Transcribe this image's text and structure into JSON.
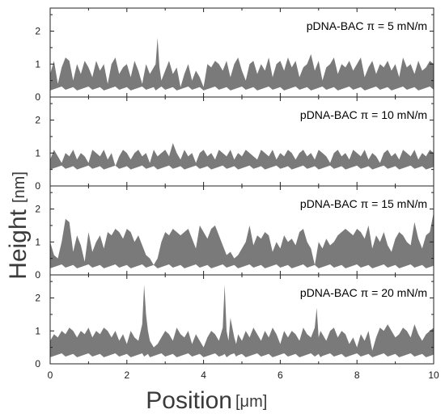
{
  "chart_data": {
    "type": "area",
    "xlabel": "Position",
    "xunit": "[μm]",
    "ylabel": "Height",
    "yunit": "[nm]",
    "xlim": [
      0,
      10
    ],
    "xticks": [
      "0",
      "2",
      "4",
      "6",
      "8",
      "10"
    ],
    "fill_color": "#7a7a7a",
    "panels": [
      {
        "label": "pDNA-BAC π = 5 mN/m",
        "ylim": [
          0,
          2.7
        ],
        "yticks": [
          "0",
          "1",
          "2"
        ],
        "x": [
          0.0,
          0.1,
          0.2,
          0.3,
          0.4,
          0.5,
          0.6,
          0.7,
          0.8,
          0.9,
          1.0,
          1.1,
          1.2,
          1.3,
          1.4,
          1.5,
          1.6,
          1.7,
          1.8,
          1.9,
          2.0,
          2.1,
          2.2,
          2.3,
          2.4,
          2.5,
          2.6,
          2.7,
          2.75,
          2.8,
          2.85,
          2.9,
          3.0,
          3.1,
          3.2,
          3.3,
          3.4,
          3.5,
          3.6,
          3.7,
          3.8,
          3.9,
          4.0,
          4.1,
          4.2,
          4.3,
          4.4,
          4.5,
          4.6,
          4.7,
          4.8,
          4.9,
          5.0,
          5.1,
          5.2,
          5.3,
          5.4,
          5.5,
          5.6,
          5.7,
          5.8,
          5.9,
          6.0,
          6.1,
          6.2,
          6.3,
          6.4,
          6.5,
          6.6,
          6.7,
          6.8,
          6.9,
          7.0,
          7.1,
          7.2,
          7.3,
          7.4,
          7.5,
          7.6,
          7.7,
          7.8,
          7.9,
          8.0,
          8.1,
          8.2,
          8.3,
          8.4,
          8.5,
          8.6,
          8.7,
          8.8,
          8.9,
          9.0,
          9.1,
          9.2,
          9.3,
          9.4,
          9.5,
          9.6,
          9.7,
          9.8,
          9.9,
          10.0
        ],
        "y": [
          0.7,
          1.1,
          0.4,
          0.9,
          1.2,
          1.1,
          0.5,
          1.0,
          0.7,
          1.1,
          0.9,
          0.6,
          1.1,
          0.8,
          1.0,
          0.4,
          1.0,
          1.2,
          0.7,
          0.9,
          1.0,
          0.6,
          1.1,
          0.8,
          0.4,
          1.0,
          0.7,
          0.9,
          1.0,
          1.8,
          0.9,
          0.5,
          0.8,
          1.1,
          0.7,
          0.9,
          0.3,
          0.7,
          1.0,
          0.5,
          0.8,
          0.6,
          0.3,
          1.0,
          0.9,
          1.1,
          1.0,
          0.8,
          1.1,
          0.6,
          1.0,
          1.2,
          0.8,
          0.5,
          1.0,
          1.1,
          0.7,
          1.0,
          0.8,
          1.2,
          0.6,
          1.0,
          1.1,
          0.8,
          1.2,
          0.9,
          1.1,
          0.6,
          0.9,
          1.0,
          1.3,
          0.8,
          1.1,
          0.5,
          0.9,
          1.0,
          1.2,
          0.7,
          1.0,
          0.9,
          1.1,
          0.8,
          1.0,
          1.2,
          0.6,
          0.9,
          1.1,
          0.7,
          1.0,
          0.9,
          1.1,
          0.8,
          1.0,
          0.6,
          1.2,
          0.9,
          1.0,
          0.7,
          1.1,
          0.8,
          0.9,
          1.1,
          1.0
        ],
        "bottom": 0.2
      },
      {
        "label": "pDNA-BAC π = 10 mN/m",
        "ylim": [
          0,
          2.7
        ],
        "yticks": [
          "0",
          "1",
          "2"
        ],
        "x": [
          0.0,
          0.1,
          0.2,
          0.3,
          0.4,
          0.5,
          0.6,
          0.7,
          0.8,
          0.9,
          1.0,
          1.1,
          1.2,
          1.3,
          1.4,
          1.5,
          1.6,
          1.7,
          1.8,
          1.9,
          2.0,
          2.1,
          2.2,
          2.3,
          2.4,
          2.5,
          2.6,
          2.7,
          2.8,
          2.9,
          3.0,
          3.1,
          3.2,
          3.3,
          3.4,
          3.5,
          3.6,
          3.7,
          3.8,
          3.9,
          4.0,
          4.1,
          4.2,
          4.3,
          4.4,
          4.5,
          4.6,
          4.7,
          4.8,
          4.9,
          5.0,
          5.1,
          5.2,
          5.3,
          5.4,
          5.5,
          5.6,
          5.7,
          5.8,
          5.9,
          6.0,
          6.1,
          6.2,
          6.3,
          6.4,
          6.5,
          6.6,
          6.7,
          6.8,
          6.9,
          7.0,
          7.1,
          7.2,
          7.3,
          7.4,
          7.5,
          7.6,
          7.7,
          7.8,
          7.9,
          8.0,
          8.1,
          8.2,
          8.3,
          8.4,
          8.5,
          8.6,
          8.7,
          8.8,
          8.9,
          9.0,
          9.1,
          9.2,
          9.3,
          9.4,
          9.5,
          9.6,
          9.7,
          9.8,
          9.9,
          10.0
        ],
        "y": [
          0.8,
          1.1,
          0.9,
          0.7,
          1.0,
          0.9,
          1.1,
          0.8,
          1.0,
          0.9,
          0.7,
          1.1,
          1.0,
          0.9,
          1.1,
          0.8,
          1.0,
          0.6,
          0.9,
          1.1,
          1.0,
          0.8,
          1.0,
          1.1,
          0.9,
          1.0,
          0.7,
          1.1,
          0.9,
          1.0,
          1.1,
          0.9,
          1.3,
          1.0,
          0.8,
          1.1,
          0.9,
          1.0,
          0.7,
          1.0,
          1.1,
          0.9,
          1.0,
          0.8,
          1.1,
          1.0,
          0.9,
          1.1,
          0.8,
          1.0,
          0.9,
          1.1,
          1.0,
          0.9,
          0.8,
          1.1,
          1.0,
          0.9,
          1.1,
          0.8,
          1.0,
          0.9,
          1.1,
          1.0,
          0.8,
          1.0,
          1.1,
          0.9,
          1.0,
          0.8,
          1.1,
          1.0,
          0.9,
          0.7,
          1.0,
          1.1,
          0.9,
          1.0,
          0.8,
          1.1,
          1.0,
          0.9,
          1.1,
          0.8,
          1.0,
          0.9,
          0.7,
          1.0,
          1.1,
          0.9,
          1.0,
          0.8,
          1.1,
          1.0,
          0.9,
          1.1,
          0.8,
          1.0,
          0.9,
          1.1,
          1.0
        ],
        "bottom": 0.5
      },
      {
        "label": "pDNA-BAC π = 15 mN/m",
        "ylim": [
          0,
          2.7
        ],
        "yticks": [
          "0",
          "1",
          "2"
        ],
        "x": [
          0.0,
          0.1,
          0.2,
          0.3,
          0.4,
          0.5,
          0.6,
          0.7,
          0.8,
          0.9,
          1.0,
          1.1,
          1.2,
          1.3,
          1.4,
          1.5,
          1.6,
          1.7,
          1.8,
          1.9,
          2.0,
          2.1,
          2.2,
          2.3,
          2.4,
          2.5,
          2.6,
          2.7,
          2.8,
          2.9,
          3.0,
          3.1,
          3.2,
          3.3,
          3.4,
          3.5,
          3.6,
          3.7,
          3.8,
          3.9,
          4.0,
          4.1,
          4.2,
          4.3,
          4.4,
          4.5,
          4.6,
          4.7,
          4.8,
          4.9,
          5.0,
          5.1,
          5.2,
          5.3,
          5.4,
          5.5,
          5.6,
          5.7,
          5.8,
          5.9,
          6.0,
          6.1,
          6.2,
          6.3,
          6.4,
          6.5,
          6.6,
          6.7,
          6.8,
          6.9,
          7.0,
          7.1,
          7.2,
          7.3,
          7.4,
          7.5,
          7.6,
          7.7,
          7.8,
          7.9,
          8.0,
          8.1,
          8.2,
          8.3,
          8.4,
          8.5,
          8.6,
          8.7,
          8.8,
          8.9,
          9.0,
          9.1,
          9.2,
          9.3,
          9.4,
          9.5,
          9.6,
          9.7,
          9.8,
          9.9,
          10.0
        ],
        "y": [
          1.0,
          0.6,
          0.5,
          1.0,
          1.7,
          1.6,
          0.7,
          1.2,
          0.9,
          0.4,
          1.3,
          0.7,
          1.0,
          1.2,
          0.8,
          1.3,
          1.2,
          1.4,
          1.3,
          1.1,
          1.4,
          1.3,
          1.0,
          1.2,
          0.9,
          0.6,
          0.5,
          0.3,
          0.5,
          1.0,
          1.3,
          1.2,
          1.4,
          1.3,
          1.2,
          1.3,
          1.4,
          1.1,
          0.8,
          1.5,
          1.3,
          1.1,
          1.4,
          1.5,
          1.2,
          0.9,
          0.6,
          0.7,
          0.5,
          0.6,
          0.8,
          1.0,
          1.5,
          0.9,
          1.2,
          1.1,
          1.3,
          1.2,
          0.7,
          1.0,
          0.8,
          1.2,
          1.0,
          1.1,
          0.9,
          1.3,
          1.4,
          1.0,
          0.8,
          0.3,
          1.0,
          0.8,
          1.1,
          0.9,
          1.0,
          1.2,
          1.3,
          1.4,
          1.3,
          1.2,
          1.4,
          1.3,
          1.1,
          1.5,
          0.8,
          1.2,
          1.0,
          1.3,
          0.9,
          0.7,
          1.1,
          1.3,
          1.2,
          1.0,
          0.9,
          1.6,
          1.1,
          0.8,
          1.2,
          1.3,
          1.9
        ],
        "bottom": 0.2
      },
      {
        "label": "pDNA-BAC π = 20 mN/m",
        "ylim": [
          0,
          2.7
        ],
        "yticks": [
          "0",
          "1",
          "2"
        ],
        "x": [
          0.0,
          0.1,
          0.2,
          0.3,
          0.4,
          0.5,
          0.6,
          0.7,
          0.8,
          0.9,
          1.0,
          1.1,
          1.2,
          1.3,
          1.4,
          1.5,
          1.6,
          1.7,
          1.8,
          1.9,
          2.0,
          2.1,
          2.2,
          2.3,
          2.4,
          2.45,
          2.5,
          2.55,
          2.6,
          2.7,
          2.8,
          2.9,
          3.0,
          3.1,
          3.2,
          3.3,
          3.4,
          3.5,
          3.6,
          3.7,
          3.8,
          3.9,
          4.0,
          4.1,
          4.2,
          4.3,
          4.4,
          4.5,
          4.55,
          4.6,
          4.65,
          4.7,
          4.8,
          4.85,
          4.9,
          5.0,
          5.1,
          5.2,
          5.3,
          5.4,
          5.5,
          5.6,
          5.7,
          5.8,
          5.9,
          6.0,
          6.1,
          6.2,
          6.3,
          6.4,
          6.5,
          6.6,
          6.7,
          6.8,
          6.9,
          6.95,
          7.0,
          7.05,
          7.1,
          7.2,
          7.3,
          7.4,
          7.5,
          7.6,
          7.7,
          7.8,
          7.9,
          8.0,
          8.1,
          8.2,
          8.3,
          8.4,
          8.5,
          8.6,
          8.7,
          8.8,
          8.9,
          9.0,
          9.1,
          9.2,
          9.3,
          9.4,
          9.5,
          9.6,
          9.7,
          9.8,
          9.9,
          10.0
        ],
        "y": [
          0.7,
          0.9,
          0.8,
          1.0,
          0.9,
          1.1,
          1.0,
          0.8,
          1.0,
          0.9,
          1.1,
          0.8,
          1.0,
          0.9,
          1.1,
          1.0,
          0.8,
          1.0,
          0.7,
          0.9,
          0.6,
          1.0,
          0.8,
          0.7,
          1.2,
          2.4,
          1.5,
          1.0,
          0.7,
          0.5,
          0.6,
          0.8,
          1.0,
          0.9,
          0.7,
          1.1,
          0.9,
          0.8,
          1.0,
          0.6,
          0.9,
          0.7,
          0.5,
          0.8,
          1.0,
          0.9,
          0.7,
          1.1,
          2.4,
          1.0,
          0.7,
          1.4,
          0.8,
          0.6,
          0.9,
          0.7,
          1.0,
          0.8,
          1.1,
          0.9,
          0.7,
          1.0,
          0.8,
          1.1,
          0.9,
          0.6,
          1.0,
          0.8,
          1.0,
          0.9,
          0.7,
          1.1,
          0.9,
          0.8,
          1.1,
          1.7,
          0.8,
          1.0,
          0.9,
          0.7,
          1.0,
          1.1,
          0.8,
          1.0,
          0.9,
          0.6,
          0.8,
          0.5,
          0.9,
          0.7,
          1.0,
          0.4,
          0.8,
          1.1,
          1.0,
          1.2,
          1.0,
          0.8,
          0.9,
          1.1,
          1.0,
          0.8,
          1.2,
          0.9,
          0.7,
          0.9,
          1.0,
          1.1
        ],
        "bottom": 0.2
      }
    ]
  }
}
